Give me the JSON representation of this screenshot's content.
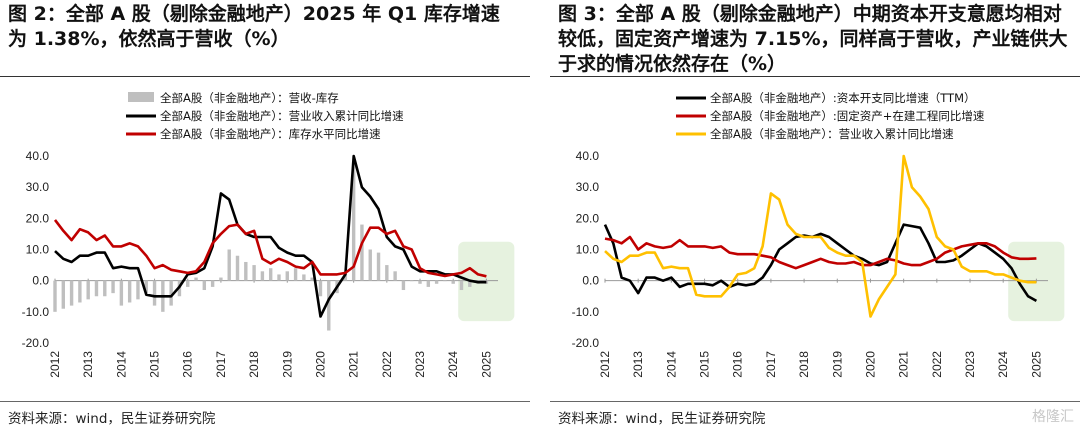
{
  "left": {
    "title": "图 2：全部 A 股（剔除金融地产）2025 年 Q1 库存增速为 1.38%，依然高于营收（%）",
    "source": "资料来源：wind，民生证券研究院"
  },
  "right": {
    "title": "图 3：全部 A 股（剔除金融地产）中期资本开支意愿均相对较低，固定资产增速为 7.15%，同样高于营收，产业链供大于求的情况依然存在（%）",
    "source": "资料来源：wind，民生证券研究院"
  },
  "watermark": "格隆汇",
  "colors": {
    "black": "#000000",
    "red": "#c00000",
    "gold": "#ffc000",
    "grey": "#bfbfbf",
    "highlight": "#e2f0d9"
  },
  "chart_data": [
    {
      "type": "bar+line",
      "title": "图 2：全部 A 股（剔除金融地产）2025 年 Q1 库存增速为 1.38%，依然高于营收（%）",
      "ylim": [
        -20,
        40
      ],
      "y_ticks": [
        "40.0",
        "30.0",
        "20.0",
        "10.0",
        "0.0",
        "-10.0",
        "-20.0"
      ],
      "x_ticks": [
        "2012",
        "2013",
        "2014",
        "2015",
        "2016",
        "2017",
        "2018",
        "2019",
        "2020",
        "2021",
        "2022",
        "2023",
        "2024",
        "2025"
      ],
      "legend_position": "top",
      "highlight_x_range": [
        2024,
        2025.3
      ],
      "bar_series": {
        "name": "全部A股（非金融地产）：营收-库存",
        "color": "#bfbfbf",
        "x": [
          2012.0,
          2012.25,
          2012.5,
          2012.75,
          2013.0,
          2013.25,
          2013.5,
          2013.75,
          2014.0,
          2014.25,
          2014.5,
          2014.75,
          2015.0,
          2015.25,
          2015.5,
          2015.75,
          2016.0,
          2016.25,
          2016.5,
          2016.75,
          2017.0,
          2017.25,
          2017.5,
          2017.75,
          2018.0,
          2018.25,
          2018.5,
          2018.75,
          2019.0,
          2019.25,
          2019.5,
          2019.75,
          2020.0,
          2020.25,
          2020.5,
          2020.75,
          2021.0,
          2021.25,
          2021.5,
          2021.75,
          2022.0,
          2022.25,
          2022.5,
          2022.75,
          2023.0,
          2023.25,
          2023.5,
          2023.75,
          2024.0,
          2024.25,
          2024.5,
          2024.75,
          2025.0
        ],
        "values": [
          -10,
          -9,
          -8,
          -7,
          -6,
          -5,
          -5,
          -4,
          -8,
          -7,
          -6,
          -4,
          -8,
          -10,
          -8,
          -5,
          -2,
          1,
          -3,
          -2,
          1,
          10,
          8,
          6,
          5,
          3,
          4,
          2,
          3,
          4,
          2,
          1,
          -5,
          -16,
          -4,
          2,
          38,
          18,
          10,
          9,
          5,
          3,
          -3,
          0,
          -1,
          -2,
          -1,
          0,
          -1,
          -3,
          -2,
          -1,
          -1
        ]
      },
      "series": [
        {
          "name": "全部A股（非金融地产）：营业收入累计同比增速",
          "color": "#000000",
          "x": [
            2012.0,
            2012.25,
            2012.5,
            2012.75,
            2013.0,
            2013.25,
            2013.5,
            2013.75,
            2014.0,
            2014.25,
            2014.5,
            2014.75,
            2015.0,
            2015.25,
            2015.5,
            2015.75,
            2016.0,
            2016.25,
            2016.5,
            2016.75,
            2017.0,
            2017.25,
            2017.5,
            2017.75,
            2018.0,
            2018.25,
            2018.5,
            2018.75,
            2019.0,
            2019.25,
            2019.5,
            2019.75,
            2020.0,
            2020.25,
            2020.5,
            2020.75,
            2021.0,
            2021.25,
            2021.5,
            2021.75,
            2022.0,
            2022.25,
            2022.5,
            2022.75,
            2023.0,
            2023.25,
            2023.5,
            2023.75,
            2024.0,
            2024.25,
            2024.5,
            2024.75,
            2025.0
          ],
          "values": [
            9.5,
            7,
            6,
            8,
            8,
            9,
            9,
            4,
            4.5,
            4,
            4,
            -4.5,
            -5,
            -5,
            -5,
            -2,
            2,
            2.5,
            4,
            11,
            28,
            26,
            18,
            15,
            14,
            14,
            14,
            10.5,
            9,
            8,
            8,
            6,
            -11.5,
            -6,
            -2,
            2,
            40,
            30,
            27,
            23,
            14,
            11,
            10,
            4.5,
            3,
            3,
            3,
            2,
            2,
            1,
            0,
            -0.5,
            -0.5
          ]
        },
        {
          "name": "全部A股（非金融地产）：库存水平同比增速",
          "color": "#c00000",
          "x": [
            2012.0,
            2012.25,
            2012.5,
            2012.75,
            2013.0,
            2013.25,
            2013.5,
            2013.75,
            2014.0,
            2014.25,
            2014.5,
            2014.75,
            2015.0,
            2015.25,
            2015.5,
            2015.75,
            2016.0,
            2016.25,
            2016.5,
            2016.75,
            2017.0,
            2017.25,
            2017.5,
            2017.75,
            2018.0,
            2018.25,
            2018.5,
            2018.75,
            2019.0,
            2019.25,
            2019.5,
            2019.75,
            2020.0,
            2020.25,
            2020.5,
            2020.75,
            2021.0,
            2021.25,
            2021.5,
            2021.75,
            2022.0,
            2022.25,
            2022.5,
            2022.75,
            2023.0,
            2023.25,
            2023.5,
            2023.75,
            2024.0,
            2024.25,
            2024.5,
            2024.75,
            2025.0
          ],
          "values": [
            19.5,
            16,
            13,
            16.5,
            15.5,
            13,
            14.5,
            11,
            11,
            12,
            11,
            8,
            4,
            5,
            3.5,
            3,
            2.5,
            3,
            6,
            12,
            15,
            17.5,
            18,
            15,
            16,
            7,
            5.5,
            7,
            6,
            4.5,
            4,
            6,
            2,
            2,
            2,
            2.5,
            4.5,
            12,
            17,
            17,
            15,
            16,
            11,
            10,
            4,
            2.5,
            2,
            1.5,
            2,
            2.5,
            4,
            2,
            1.4
          ]
        }
      ]
    },
    {
      "type": "line",
      "title": "图 3：全部 A 股（剔除金融地产）中期资本开支意愿均相对较低，固定资产增速为 7.15%，同样高于营收，产业链供大于求的情况依然存在（%）",
      "ylim": [
        -20,
        40
      ],
      "y_ticks": [
        "40.0",
        "30.0",
        "20.0",
        "10.0",
        "0.0",
        "-10.0",
        "-20.0"
      ],
      "x_ticks": [
        "2012",
        "2013",
        "2014",
        "2015",
        "2016",
        "2017",
        "2018",
        "2019",
        "2020",
        "2021",
        "2022",
        "2023",
        "2024",
        "2025"
      ],
      "legend_position": "top",
      "highlight_x_range": [
        2024,
        2025.3
      ],
      "series": [
        {
          "name": "全部A股（非金融地产）:资本开支同比增速（TTM）",
          "color": "#000000",
          "x": [
            2012.0,
            2012.25,
            2012.5,
            2012.75,
            2013.0,
            2013.25,
            2013.5,
            2013.75,
            2014.0,
            2014.25,
            2014.5,
            2014.75,
            2015.0,
            2015.25,
            2015.5,
            2015.75,
            2016.0,
            2016.25,
            2016.5,
            2016.75,
            2017.0,
            2017.25,
            2017.5,
            2017.75,
            2018.0,
            2018.25,
            2018.5,
            2018.75,
            2019.0,
            2019.25,
            2019.5,
            2019.75,
            2020.0,
            2020.25,
            2020.5,
            2020.75,
            2021.0,
            2021.25,
            2021.5,
            2021.75,
            2022.0,
            2022.25,
            2022.5,
            2022.75,
            2023.0,
            2023.25,
            2023.5,
            2023.75,
            2024.0,
            2024.25,
            2024.5,
            2024.75,
            2025.0
          ],
          "values": [
            18,
            12,
            1,
            0,
            -4,
            1,
            1,
            0,
            1,
            -2,
            -1,
            -1,
            -1,
            -1.5,
            0,
            -2,
            -1,
            -1.5,
            -1,
            1,
            5,
            10,
            12,
            14,
            14.5,
            14,
            15,
            14,
            12,
            10,
            8,
            7,
            5.5,
            5,
            6,
            12,
            18,
            17.5,
            17,
            12,
            6,
            6,
            6.5,
            8,
            10,
            12,
            11,
            9,
            7,
            4,
            -1,
            -5,
            -6.5
          ]
        },
        {
          "name": "全部A股（非金融地产）:固定资产+在建工程同比增速",
          "color": "#c00000",
          "x": [
            2012.0,
            2012.25,
            2012.5,
            2012.75,
            2013.0,
            2013.25,
            2013.5,
            2013.75,
            2014.0,
            2014.25,
            2014.5,
            2014.75,
            2015.0,
            2015.25,
            2015.5,
            2015.75,
            2016.0,
            2016.25,
            2016.5,
            2016.75,
            2017.0,
            2017.25,
            2017.5,
            2017.75,
            2018.0,
            2018.25,
            2018.5,
            2018.75,
            2019.0,
            2019.25,
            2019.5,
            2019.75,
            2020.0,
            2020.25,
            2020.5,
            2020.75,
            2021.0,
            2021.25,
            2021.5,
            2021.75,
            2022.0,
            2022.25,
            2022.5,
            2022.75,
            2023.0,
            2023.25,
            2023.5,
            2023.75,
            2024.0,
            2024.25,
            2024.5,
            2024.75,
            2025.0
          ],
          "values": [
            13.5,
            13,
            12,
            14,
            10,
            12,
            11,
            10.5,
            11,
            13,
            11,
            11,
            11,
            10.5,
            11,
            9,
            8.5,
            8.5,
            8.5,
            8,
            7.5,
            6,
            5,
            4,
            5,
            6,
            7,
            6,
            5.5,
            5.5,
            6,
            5,
            5,
            6,
            7,
            6.5,
            5.5,
            5,
            5,
            6,
            7,
            9,
            10,
            11,
            11.5,
            12,
            12,
            11,
            9,
            7.5,
            7,
            7,
            7.15
          ]
        },
        {
          "name": "全部A股（非金融地产）：营业收入累计同比增速",
          "color": "#ffc000",
          "x": [
            2012.0,
            2012.25,
            2012.5,
            2012.75,
            2013.0,
            2013.25,
            2013.5,
            2013.75,
            2014.0,
            2014.25,
            2014.5,
            2014.75,
            2015.0,
            2015.25,
            2015.5,
            2015.75,
            2016.0,
            2016.25,
            2016.5,
            2016.75,
            2017.0,
            2017.25,
            2017.5,
            2017.75,
            2018.0,
            2018.25,
            2018.5,
            2018.75,
            2019.0,
            2019.25,
            2019.5,
            2019.75,
            2020.0,
            2020.25,
            2020.5,
            2020.75,
            2021.0,
            2021.25,
            2021.5,
            2021.75,
            2022.0,
            2022.25,
            2022.5,
            2022.75,
            2023.0,
            2023.25,
            2023.5,
            2023.75,
            2024.0,
            2024.25,
            2024.5,
            2024.75,
            2025.0
          ],
          "values": [
            9.5,
            7,
            6,
            8,
            8,
            9,
            9,
            4,
            4.5,
            4,
            4,
            -4.5,
            -5,
            -5,
            -5,
            -2,
            2,
            2.5,
            4,
            11,
            28,
            26,
            18,
            15,
            14,
            14,
            14,
            10.5,
            9,
            8,
            8,
            6,
            -11.5,
            -6,
            -2,
            2,
            40,
            30,
            27,
            23,
            14,
            11,
            10,
            4.5,
            3,
            3,
            3,
            2,
            2,
            1,
            0,
            -0.5,
            -0.5
          ]
        }
      ]
    }
  ]
}
